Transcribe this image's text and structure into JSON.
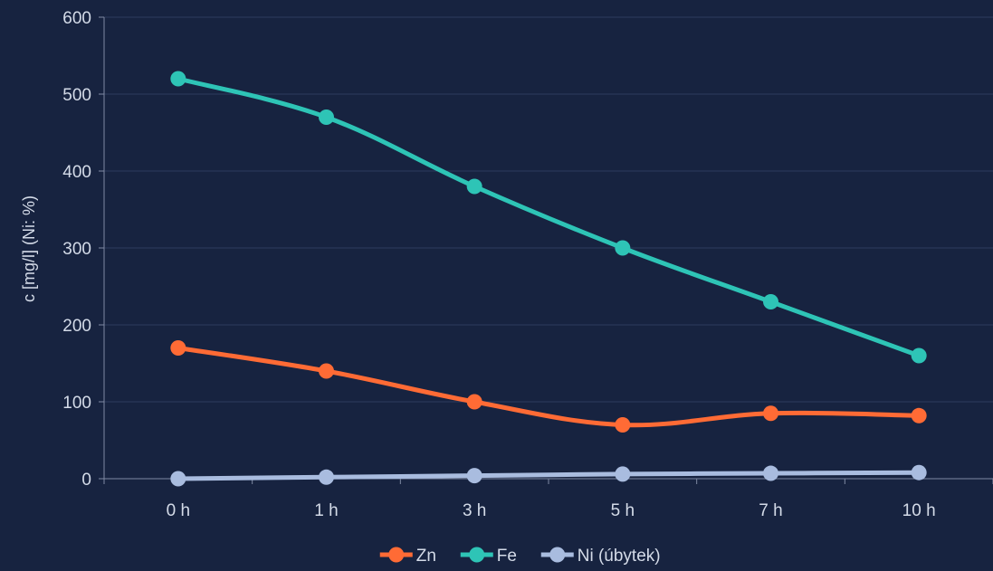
{
  "chart_data": {
    "type": "line",
    "categories": [
      "0 h",
      "1 h",
      "3 h",
      "5 h",
      "7 h",
      "10 h"
    ],
    "ylabel": "c [mg/l]  (Ni: %)",
    "ylim": [
      0,
      600
    ],
    "yticks": [
      0,
      100,
      200,
      300,
      400,
      500,
      600
    ],
    "grid": true,
    "legend_position": "bottom",
    "series": [
      {
        "name": "Zn",
        "color": "#ff6b35",
        "values": [
          170,
          140,
          100,
          70,
          85,
          82
        ]
      },
      {
        "name": "Fe",
        "color": "#2ec4b6",
        "values": [
          520,
          470,
          380,
          300,
          230,
          160
        ]
      },
      {
        "name": "Ni (úbytek)",
        "color": "#a9bcdf",
        "values": [
          0,
          2,
          4,
          6,
          7,
          8
        ]
      }
    ]
  }
}
